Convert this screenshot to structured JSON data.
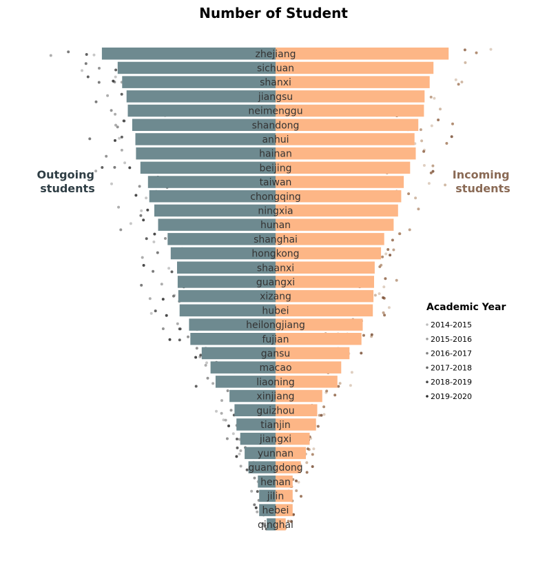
{
  "chart_data": {
    "type": "bar",
    "title": "Number of Student",
    "left_label": [
      "Outgoing",
      "students"
    ],
    "right_label": [
      "Incoming",
      "students"
    ],
    "colors": {
      "outgoing": "#6e8a90",
      "incoming": "#fdb686",
      "outgoing_label": "#2f3e45",
      "incoming_label": "#8a6a55"
    },
    "categories": [
      "zhejiang",
      "sichuan",
      "shanxi",
      "jiangsu",
      "neimenggu",
      "shandong",
      "anhui",
      "hainan",
      "beijing",
      "taiwan",
      "chongqing",
      "ningxia",
      "hunan",
      "shanghai",
      "hongkong",
      "shaanxi",
      "guangxi",
      "xizang",
      "hubei",
      "heilongjiang",
      "fujian",
      "gansu",
      "macao",
      "liaoning",
      "xinjiang",
      "guizhou",
      "tianjin",
      "jiangxi",
      "yunnan",
      "guangdong",
      "henan",
      "jilin",
      "hebei",
      "qinghai"
    ],
    "series": [
      {
        "name": "Outgoing students",
        "values": [
          275,
          250,
          243,
          236,
          234,
          227,
          222,
          221,
          214,
          202,
          200,
          192,
          186,
          171,
          166,
          156,
          155,
          154,
          152,
          137,
          135,
          117,
          103,
          95,
          73,
          65,
          62,
          56,
          49,
          43,
          28,
          26,
          26,
          14
        ]
      },
      {
        "name": "Incoming students",
        "values": [
          274,
          250,
          244,
          236,
          235,
          226,
          220,
          222,
          213,
          203,
          199,
          194,
          187,
          172,
          167,
          157,
          156,
          155,
          154,
          138,
          136,
          117,
          104,
          98,
          74,
          66,
          64,
          54,
          48,
          40,
          27,
          27,
          27,
          16
        ]
      }
    ],
    "xlim": [
      -300,
      300
    ],
    "legend": {
      "title": "Academic Year",
      "position": "right",
      "entries": [
        "2014-2015",
        "2015-2016",
        "2016-2017",
        "2017-2018",
        "2018-2019",
        "2019-2020"
      ],
      "dot_colors": [
        "#bdbdbd",
        "#9f9f9f",
        "#828282",
        "#656565",
        "#474747",
        "#2a2a2a"
      ]
    }
  }
}
